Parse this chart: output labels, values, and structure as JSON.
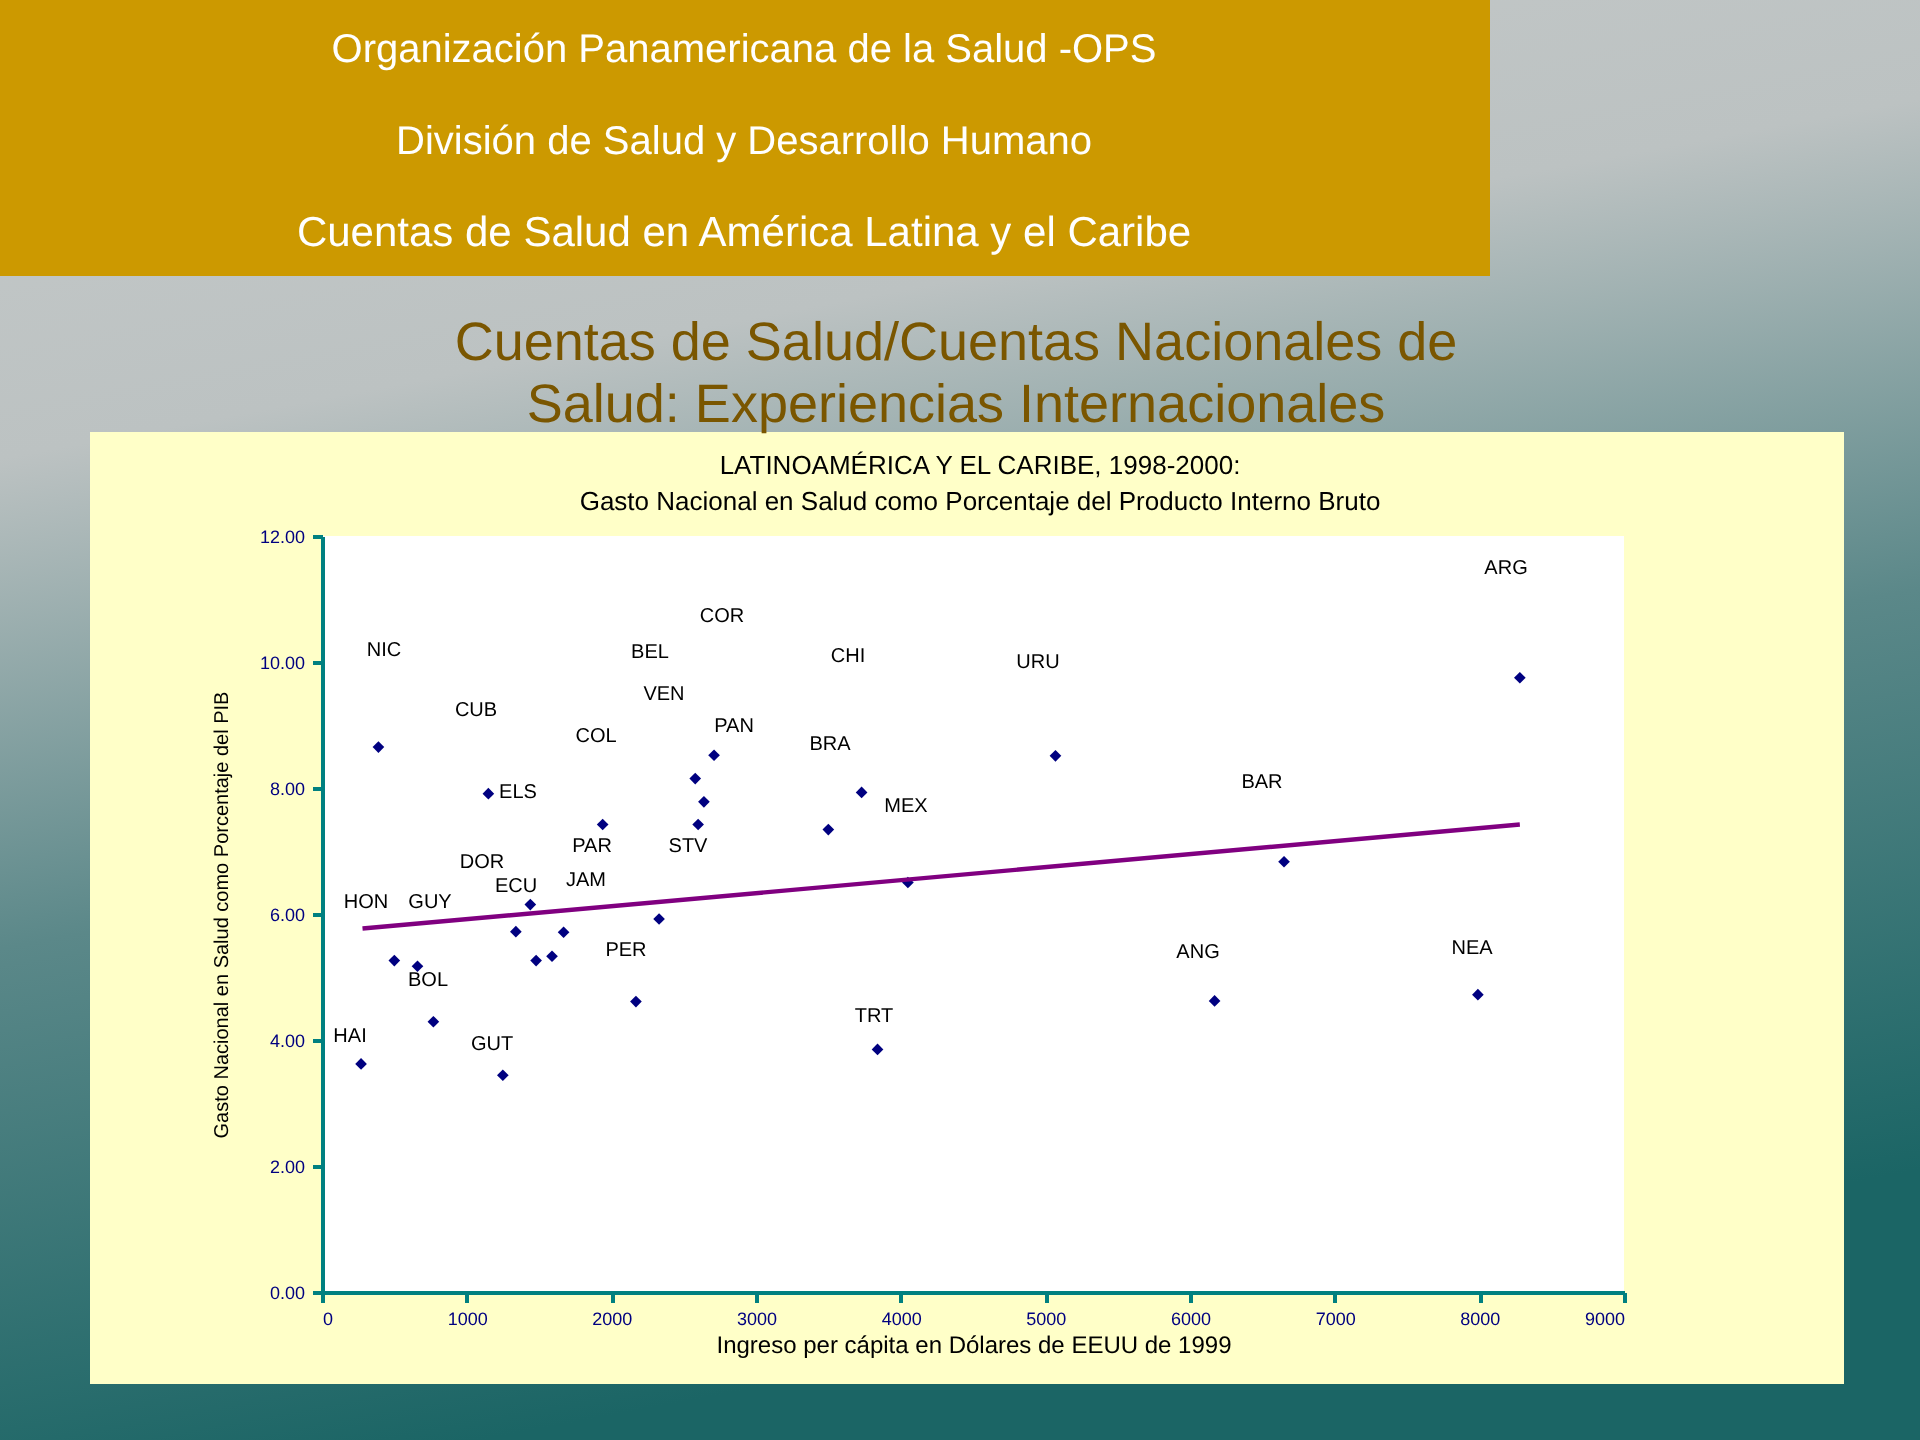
{
  "chart_data": {
    "type": "scatter",
    "title": "LATINOAMÉRICA Y EL CARIBE, 1998-2000:",
    "subtitle": "Gasto Nacional en Salud como Porcentaje del Producto Interno Bruto",
    "xlabel": "Ingreso per cápita en Dólares de EEUU de 1999",
    "ylabel": "Gasto Nacional en Salud como Porcentaje del PIB",
    "xlim": [
      0,
      9000
    ],
    "xticks": [
      0,
      1000,
      2000,
      3000,
      4000,
      5000,
      6000,
      7000,
      8000,
      9000
    ],
    "ylim": [
      0,
      12
    ],
    "yticks": [
      {
        "value": 0,
        "label": "0.00"
      },
      {
        "value": 2,
        "label": "2.00"
      },
      {
        "value": 4,
        "label": "4.00"
      },
      {
        "value": 6,
        "label": "6.00"
      },
      {
        "value": 8,
        "label": "8.00"
      },
      {
        "value": 10,
        "label": "10.00"
      },
      {
        "value": 12,
        "label": "12.00"
      }
    ],
    "grid": false,
    "series": [
      {
        "color": "#000080",
        "marker": "diamond",
        "x": [
          270,
          390,
          500,
          660,
          770,
          1150,
          1250,
          1340,
          1440,
          1480,
          1590,
          1670,
          1940,
          2170,
          2330,
          2580,
          2600,
          2640,
          2710,
          3500,
          3730,
          3840,
          4050,
          5070,
          6170,
          6650,
          7990,
          8280
        ],
        "values": [
          3.62,
          8.65,
          5.26,
          5.17,
          4.29,
          7.91,
          3.44,
          5.72,
          6.15,
          5.26,
          5.33,
          5.71,
          7.42,
          4.61,
          5.92,
          8.15,
          7.42,
          7.78,
          8.52,
          7.34,
          7.93,
          3.85,
          6.5,
          8.51,
          4.62,
          6.83,
          4.72,
          9.75
        ]
      },
      {
        "type": "line",
        "color": "#800080",
        "line_style": "solid",
        "x": [
          280,
          8280
        ],
        "values": [
          5.77,
          7.42
        ]
      }
    ],
    "annotations": [
      "Organización Panamericana de la Salud -OPS",
      "División de Salud y Desarrollo Humano",
      "Cuentas de Salud en América Latina y el Caribe",
      "Cuentas de Salud/Cuentas Nacionales de Salud: Experiencias Internacionales",
      "NIC",
      "COR",
      "BEL",
      "CUB",
      "VEN",
      "PAN",
      "COL",
      "CHI",
      "URU",
      "BRA",
      "ELS",
      "MEX",
      "PAR",
      "STV",
      "DOR",
      "JAM",
      "HON",
      "GUY",
      "ECU",
      "PER",
      "BOL",
      "HAI",
      "GUT",
      "TRT",
      "ARG",
      "BAR",
      "ANG",
      "NEA"
    ]
  }
}
